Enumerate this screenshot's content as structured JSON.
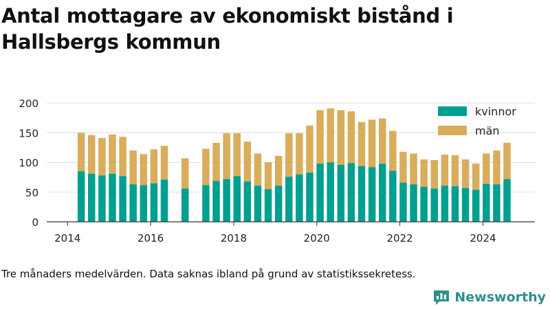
{
  "chart_data": {
    "type": "bar",
    "stacked": true,
    "title": "Antal mottagare av ekonomiskt bistånd i Hallsbergs kommun",
    "xlabel": "",
    "ylabel": "",
    "ylim": [
      0,
      200
    ],
    "yticks": [
      0,
      50,
      100,
      150,
      200
    ],
    "xlim": [
      2013.5,
      2025.25
    ],
    "xticks": [
      2014,
      2016,
      2018,
      2020,
      2022,
      2024
    ],
    "grid": "horizontal",
    "legend_position": "top-right",
    "x": [
      2014.33,
      2014.58,
      2014.83,
      2015.08,
      2015.33,
      2015.58,
      2015.83,
      2016.08,
      2016.33,
      2016.83,
      2017.33,
      2017.58,
      2017.83,
      2018.08,
      2018.33,
      2018.58,
      2018.83,
      2019.08,
      2019.33,
      2019.58,
      2019.83,
      2020.08,
      2020.33,
      2020.58,
      2020.83,
      2021.08,
      2021.33,
      2021.58,
      2021.83,
      2022.08,
      2022.33,
      2022.58,
      2022.83,
      2023.08,
      2023.33,
      2023.58,
      2023.83,
      2024.08,
      2024.33,
      2024.58
    ],
    "series": [
      {
        "name": "kvinnor",
        "color": "#00a090",
        "values": [
          85,
          81,
          78,
          81,
          77,
          63,
          62,
          65,
          71,
          56,
          62,
          69,
          72,
          77,
          68,
          61,
          55,
          61,
          76,
          80,
          83,
          98,
          100,
          96,
          99,
          94,
          92,
          98,
          86,
          66,
          63,
          59,
          56,
          61,
          60,
          57,
          54,
          64,
          63,
          72
        ]
      },
      {
        "name": "män",
        "color": "#d9ad5b",
        "values": [
          65,
          65,
          63,
          66,
          66,
          57,
          52,
          57,
          57,
          51,
          61,
          64,
          77,
          72,
          67,
          54,
          45,
          50,
          73,
          69,
          79,
          90,
          91,
          92,
          87,
          74,
          80,
          76,
          67,
          52,
          52,
          46,
          48,
          52,
          52,
          48,
          44,
          51,
          57,
          61
        ]
      }
    ]
  },
  "footer": {
    "note": "Tre månaders medelvärden. Data saknas ibland på grund av statistikssekretess.",
    "brand": "Newsworthy",
    "brand_color": "#2f8f8a",
    "brand_icon": "newsworthy-logo-icon"
  }
}
